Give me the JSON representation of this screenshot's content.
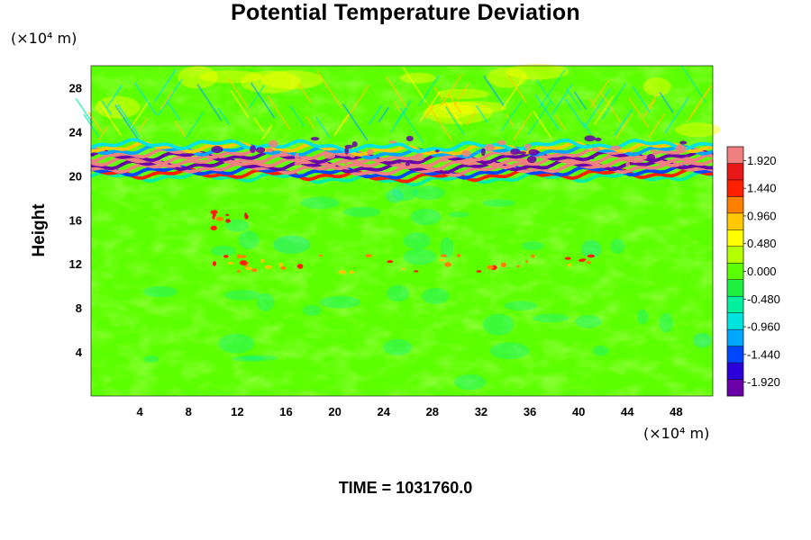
{
  "chart_data": {
    "type": "heatmap",
    "title": "Potential Temperature Deviation",
    "ylabel": "Height",
    "y_unit": "(×10⁴ m)",
    "x_unit": "(×10⁴ m)",
    "footer": "TIME = 1031760.0",
    "xlim": [
      0,
      51
    ],
    "ylim": [
      0,
      30
    ],
    "x_ticks": [
      "4",
      "8",
      "12",
      "16",
      "20",
      "24",
      "28",
      "32",
      "36",
      "40",
      "44",
      "48"
    ],
    "y_ticks": [
      "4",
      "8",
      "12",
      "16",
      "20",
      "24",
      "28"
    ],
    "x_tick_values": [
      4,
      8,
      12,
      16,
      20,
      24,
      28,
      32,
      36,
      40,
      44,
      48
    ],
    "y_tick_values": [
      4,
      8,
      12,
      16,
      20,
      24,
      28
    ],
    "colorbar": {
      "range": [
        -2.16,
        2.16
      ],
      "labels": [
        "1.920",
        "1.440",
        "0.960",
        "0.480",
        "0.000",
        "-0.480",
        "-0.960",
        "-1.440",
        "-1.920"
      ],
      "label_values": [
        1.92,
        1.44,
        0.96,
        0.48,
        0.0,
        -0.48,
        -0.96,
        -1.44,
        -1.92
      ],
      "colors_low_to_high": [
        "#6a00a8",
        "#2b00d8",
        "#0046ff",
        "#00a6ff",
        "#00e4e0",
        "#00f0a0",
        "#20f040",
        "#5cff00",
        "#b4ff00",
        "#ffff00",
        "#ffc800",
        "#ff8000",
        "#ff2000",
        "#e81818",
        "#f08080"
      ]
    },
    "background_value": 0.1,
    "features": [
      {
        "kind": "stable_band",
        "height_range": [
          19.8,
          23.0
        ],
        "x_range": [
          0,
          51
        ],
        "description_values": "alternating high (≈1.9) and low (≈-1.9) stripes"
      },
      {
        "kind": "hot_spots",
        "height": 12,
        "x_range": [
          10,
          42
        ],
        "value": 1.5
      },
      {
        "kind": "hot_spots",
        "height": 16,
        "x_range": [
          10,
          13
        ],
        "value": 1.7
      }
    ]
  }
}
